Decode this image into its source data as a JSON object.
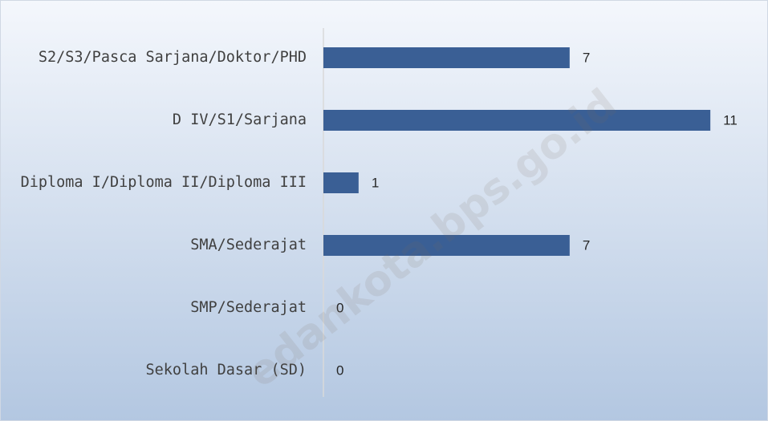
{
  "chart_data": {
    "type": "hbar",
    "categories": [
      "S2/S3/Pasca Sarjana/Doktor/PHD",
      "D IV/S1/Sarjana",
      "Diploma I/Diploma II/Diploma III",
      "SMA/Sederajat",
      "SMP/Sederajat",
      "Sekolah Dasar (SD)"
    ],
    "values": [
      7,
      11,
      1,
      7,
      0,
      0
    ],
    "color": "#3a5f95",
    "xlim": [
      0,
      12
    ],
    "grid": false,
    "watermark": "edankota.bps.go.id"
  }
}
